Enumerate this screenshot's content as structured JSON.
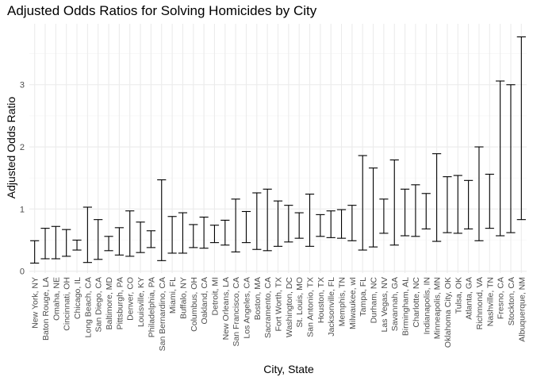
{
  "chart_data": {
    "type": "errorbar",
    "title": "Adjusted Odds Ratios for Solving Homicides by City",
    "xlabel": "City, State",
    "ylabel": "Adjusted Odds Ratio",
    "ylim": [
      -0.03,
      3.98
    ],
    "yticks": [
      0,
      1,
      2,
      3
    ],
    "grid": true,
    "categories": [
      "New York, NY",
      "Baton Rouge, LA",
      "Omaha, NE",
      "Cincinnati, OH",
      "Chicago, IL",
      "Long Beach, CA",
      "San Diego, CA",
      "Baltimore, MD",
      "Pittsburgh, PA",
      "Denver, CO",
      "Louisville, KY",
      "Philadelphia, PA",
      "San Bernardino, CA",
      "Miami, FL",
      "Buffalo, NY",
      "Columbus, OH",
      "Oakland, CA",
      "Detroit, MI",
      "New Orleans, LA",
      "San Francisco, CA",
      "Los Angeles, CA",
      "Boston, MA",
      "Sacramento, CA",
      "Fort Worth, TX",
      "Washington, DC",
      "St. Louis, MO",
      "San Antonio, TX",
      "Houston, TX",
      "Jacksonville, FL",
      "Memphis, TN",
      "Milwaukee, wI",
      "Tampa, FL",
      "Durham, NC",
      "Las Vegas, NV",
      "Savannah, GA",
      "Birmingham, AL",
      "Charlotte, NC",
      "Indianapolis, IN",
      "Minneapolis, MN",
      "Oklahoma City, OK",
      "Tulsa, OK",
      "Atlanta, GA",
      "Richmond, VA",
      "Nashville, TN",
      "Fresno, CA",
      "Stockton, CA",
      "Albuquerque, NM"
    ],
    "lower": [
      0.13,
      0.2,
      0.2,
      0.24,
      0.34,
      0.14,
      0.19,
      0.33,
      0.26,
      0.24,
      0.3,
      0.38,
      0.17,
      0.29,
      0.29,
      0.38,
      0.37,
      0.46,
      0.42,
      0.31,
      0.46,
      0.35,
      0.33,
      0.4,
      0.47,
      0.53,
      0.4,
      0.56,
      0.54,
      0.53,
      0.49,
      0.34,
      0.39,
      0.61,
      0.42,
      0.57,
      0.56,
      0.68,
      0.48,
      0.62,
      0.61,
      0.68,
      0.49,
      0.69,
      0.57,
      0.62,
      0.83
    ],
    "upper": [
      0.49,
      0.69,
      0.72,
      0.67,
      0.5,
      1.03,
      0.83,
      0.56,
      0.7,
      0.97,
      0.79,
      0.65,
      1.47,
      0.88,
      0.94,
      0.75,
      0.87,
      0.74,
      0.82,
      1.16,
      0.96,
      1.26,
      1.32,
      1.13,
      1.06,
      0.94,
      1.24,
      0.91,
      0.97,
      0.99,
      1.06,
      1.86,
      1.66,
      1.16,
      1.79,
      1.32,
      1.39,
      1.25,
      1.89,
      1.52,
      1.54,
      1.46,
      2.0,
      1.56,
      3.06,
      3.0,
      3.77
    ]
  }
}
